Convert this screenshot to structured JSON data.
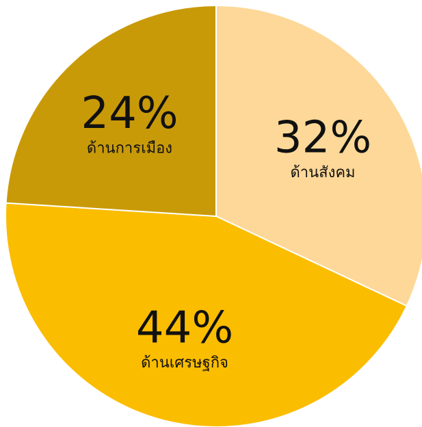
{
  "chart_data": {
    "type": "pie",
    "categories": [
      "ด้านสังคม",
      "ด้านเศรษฐกิจ",
      "ด้านการเมือง"
    ],
    "values": [
      32,
      44,
      24
    ],
    "value_labels": [
      "32%",
      "44%",
      "24%"
    ],
    "colors": [
      "#fdd898",
      "#fbbd00",
      "#c99a08"
    ]
  }
}
